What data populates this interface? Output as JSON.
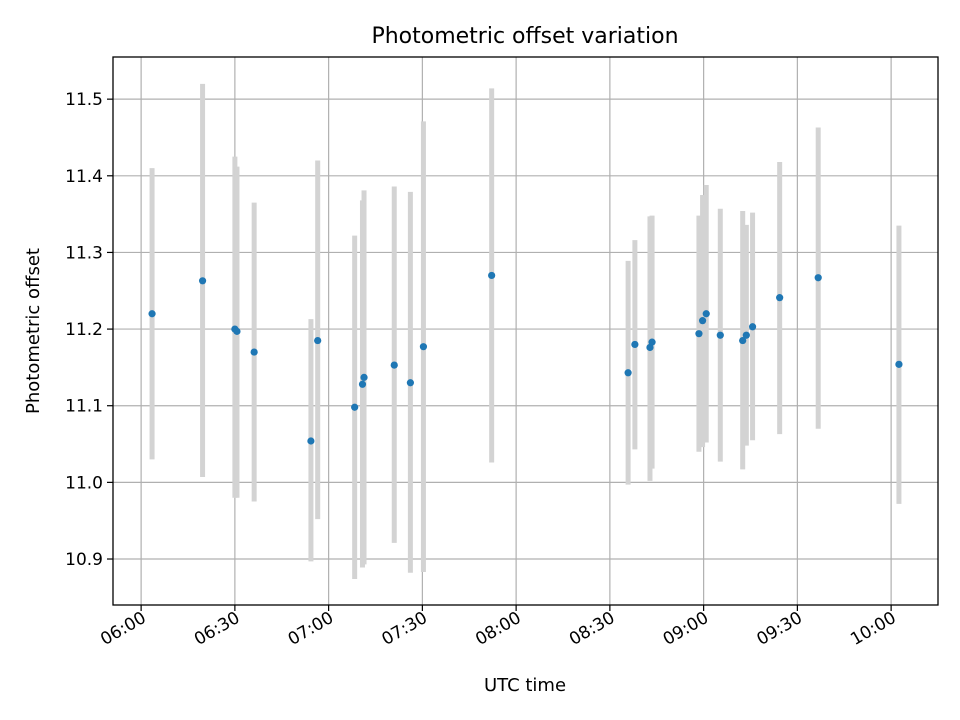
{
  "chart_data": {
    "type": "scatter",
    "title": "Photometric offset variation",
    "xlabel": "UTC time",
    "ylabel": "Photometric offset",
    "xlim": [
      "05:51",
      "10:15"
    ],
    "ylim": [
      10.84,
      11.555
    ],
    "x_ticks": [
      "06:00",
      "06:30",
      "07:00",
      "07:30",
      "08:00",
      "08:30",
      "09:00",
      "09:30",
      "10:00"
    ],
    "y_ticks": [
      10.9,
      11.0,
      11.1,
      11.2,
      11.3,
      11.4,
      11.5
    ],
    "y_tick_labels": [
      "10.9",
      "11.0",
      "11.1",
      "11.2",
      "11.3",
      "11.4",
      "11.5"
    ],
    "grid": true,
    "point_color": "#1f77b4",
    "errorbar_color": "#d3d3d3",
    "points": [
      {
        "x": "06:03:30",
        "y": 11.22,
        "lo": 11.03,
        "hi": 11.41
      },
      {
        "x": "06:19:40",
        "y": 11.263,
        "lo": 11.007,
        "hi": 11.52
      },
      {
        "x": "06:30:00",
        "y": 11.2,
        "lo": 10.98,
        "hi": 11.425
      },
      {
        "x": "06:30:40",
        "y": 11.197,
        "lo": 10.98,
        "hi": 11.412
      },
      {
        "x": "06:36:10",
        "y": 11.17,
        "lo": 10.975,
        "hi": 11.365
      },
      {
        "x": "06:54:20",
        "y": 11.054,
        "lo": 10.897,
        "hi": 11.213
      },
      {
        "x": "06:56:30",
        "y": 11.185,
        "lo": 10.952,
        "hi": 11.42
      },
      {
        "x": "07:08:20",
        "y": 11.098,
        "lo": 10.874,
        "hi": 11.322
      },
      {
        "x": "07:10:50",
        "y": 11.128,
        "lo": 10.889,
        "hi": 11.368
      },
      {
        "x": "07:11:20",
        "y": 11.137,
        "lo": 10.893,
        "hi": 11.381
      },
      {
        "x": "07:21:00",
        "y": 11.153,
        "lo": 10.921,
        "hi": 11.386
      },
      {
        "x": "07:26:10",
        "y": 11.13,
        "lo": 10.882,
        "hi": 11.379
      },
      {
        "x": "07:30:20",
        "y": 11.177,
        "lo": 10.883,
        "hi": 11.471
      },
      {
        "x": "07:52:10",
        "y": 11.27,
        "lo": 11.026,
        "hi": 11.514
      },
      {
        "x": "08:35:50",
        "y": 11.143,
        "lo": 10.997,
        "hi": 11.289
      },
      {
        "x": "08:38:00",
        "y": 11.18,
        "lo": 11.043,
        "hi": 11.316
      },
      {
        "x": "08:42:50",
        "y": 11.176,
        "lo": 11.002,
        "hi": 11.347
      },
      {
        "x": "08:43:30",
        "y": 11.183,
        "lo": 11.018,
        "hi": 11.348
      },
      {
        "x": "08:58:30",
        "y": 11.194,
        "lo": 11.04,
        "hi": 11.348
      },
      {
        "x": "08:59:40",
        "y": 11.211,
        "lo": 11.046,
        "hi": 11.375
      },
      {
        "x": "09:00:50",
        "y": 11.22,
        "lo": 11.052,
        "hi": 11.388
      },
      {
        "x": "09:05:20",
        "y": 11.192,
        "lo": 11.027,
        "hi": 11.357
      },
      {
        "x": "09:12:30",
        "y": 11.185,
        "lo": 11.017,
        "hi": 11.354
      },
      {
        "x": "09:13:40",
        "y": 11.192,
        "lo": 11.048,
        "hi": 11.336
      },
      {
        "x": "09:15:40",
        "y": 11.203,
        "lo": 11.055,
        "hi": 11.352
      },
      {
        "x": "09:24:20",
        "y": 11.241,
        "lo": 11.063,
        "hi": 11.418
      },
      {
        "x": "09:36:40",
        "y": 11.267,
        "lo": 11.07,
        "hi": 11.463
      },
      {
        "x": "10:02:30",
        "y": 11.154,
        "lo": 10.972,
        "hi": 11.335
      }
    ]
  }
}
